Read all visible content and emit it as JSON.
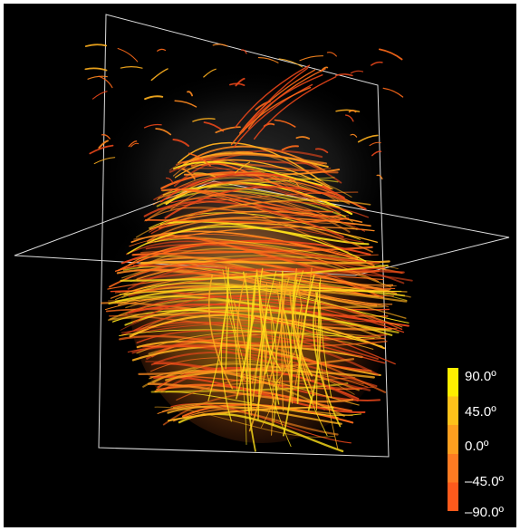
{
  "image": {
    "background_color": "#000000",
    "frame_color": "#ffffff",
    "fiber_colors": [
      "#ffe11a",
      "#ffb01e",
      "#ff8a1f",
      "#ff6a1a",
      "#e8461a"
    ]
  },
  "colorbar": {
    "colors_top_to_bottom": [
      "#ffee00",
      "#ffc21a",
      "#ff9f1f",
      "#ff7b22",
      "#ff5a1c"
    ],
    "ticks": [
      {
        "label": "90.0º",
        "value": 90.0
      },
      {
        "label": "45.0º",
        "value": 45.0
      },
      {
        "label": "0.0º",
        "value": 0.0
      },
      {
        "label": "–45.0º",
        "value": -45.0
      },
      {
        "label": "–90.0º",
        "value": -90.0
      }
    ]
  }
}
